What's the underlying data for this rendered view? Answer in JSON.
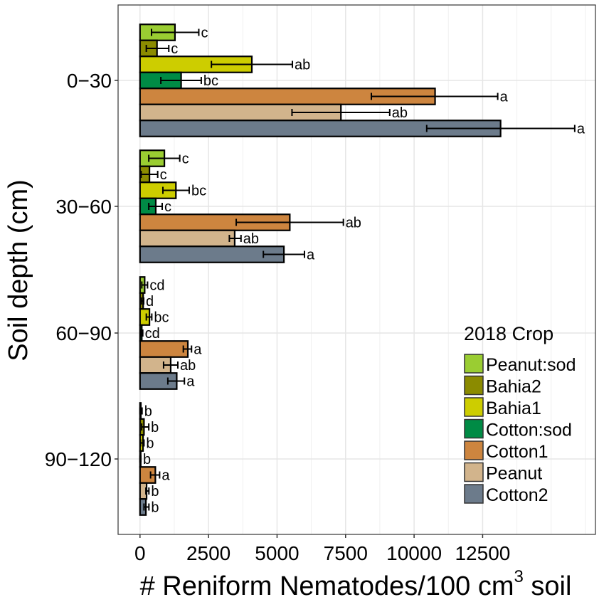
{
  "chart_data": {
    "type": "bar",
    "orientation": "horizontal",
    "title": "",
    "xlabel": "# Reniform Nematodes/100 cm",
    "xlabel_superscript": "3",
    "xlabel_suffix": " soil",
    "ylabel": "Soil depth (cm)",
    "xlim": [
      -1000,
      16500
    ],
    "xticks": [
      0,
      2500,
      5000,
      7500,
      10000,
      12500
    ],
    "xtick_labels": [
      "0",
      "2500",
      "5000",
      "7500",
      "10000",
      "12500"
    ],
    "minor_gridlines": [
      1250,
      3750,
      6250,
      8750,
      11250,
      13750,
      15000,
      16250
    ],
    "grid": true,
    "categories": [
      "0−30",
      "30−60",
      "60−90",
      "90−120"
    ],
    "legend": {
      "title": "2018 Crop",
      "position": "bottom-right"
    },
    "series": [
      {
        "name": "Peanut:sod",
        "color": "#9acd32",
        "values": [
          1275,
          890,
          170,
          30
        ],
        "err_low": [
          420,
          320,
          65,
          0
        ],
        "err_high": [
          2145,
          1450,
          275,
          75
        ],
        "letters": [
          "c",
          "c",
          "cd",
          "b"
        ]
      },
      {
        "name": "Bahia2",
        "color": "#8b8b00",
        "values": [
          620,
          345,
          115,
          145
        ],
        "err_low": [
          230,
          40,
          50,
          60
        ],
        "err_high": [
          1050,
          645,
          135,
          320
        ],
        "letters": [
          "c",
          "c",
          "d",
          "b"
        ]
      },
      {
        "name": "Bahia1",
        "color": "#cdcd00",
        "values": [
          4080,
          1310,
          345,
          110
        ],
        "err_low": [
          2605,
          835,
          230,
          20
        ],
        "err_high": [
          5560,
          1795,
          430,
          145
        ],
        "letters": [
          "ab",
          "bc",
          "bc",
          "b"
        ]
      },
      {
        "name": "Cotton:sod",
        "color": "#008b45",
        "values": [
          1500,
          575,
          65,
          15
        ],
        "err_low": [
          760,
          320,
          30,
          0
        ],
        "err_high": [
          2235,
          810,
          100,
          30
        ],
        "letters": [
          "bc",
          "c",
          "cd",
          "b"
        ]
      },
      {
        "name": "Cotton1",
        "color": "#cd853f",
        "values": [
          10765,
          5465,
          1745,
          560
        ],
        "err_low": [
          8440,
          3510,
          1580,
          385
        ],
        "err_high": [
          13050,
          7420,
          1880,
          715
        ],
        "letters": [
          "a",
          "ab",
          "a",
          "a"
        ]
      },
      {
        "name": "Peanut",
        "color": "#d2b48c",
        "values": [
          7330,
          3455,
          1120,
          240
        ],
        "err_low": [
          5545,
          3260,
          860,
          215
        ],
        "err_high": [
          9110,
          3685,
          1380,
          325
        ],
        "letters": [
          "ab",
          "ab",
          "ab",
          "b"
        ]
      },
      {
        "name": "Cotton2",
        "color": "#6c7b8b",
        "values": [
          13155,
          5250,
          1340,
          215
        ],
        "err_low": [
          10460,
          4500,
          1015,
          145
        ],
        "err_high": [
          15860,
          6000,
          1620,
          325
        ],
        "letters": [
          "a",
          "a",
          "a",
          "b"
        ]
      }
    ]
  }
}
